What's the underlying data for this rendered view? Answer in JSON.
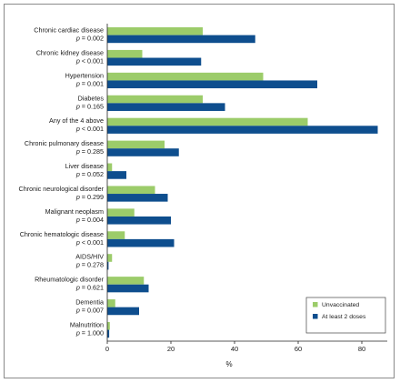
{
  "chart_data": {
    "type": "bar",
    "orientation": "horizontal",
    "categories": [
      "Chronic cardiac disease",
      "Chronic kidney disease",
      "Hypertension",
      "Diabetes",
      "Any of the 4 above",
      "Chronic pulmonary disease",
      "Liver disease",
      "Chronic neurological disorder",
      "Malignant neoplasm",
      "Chronic hematologic disease",
      "AIDS/HIV",
      "Rheumatologic disorder",
      "Dementia",
      "Malnutrition"
    ],
    "p_values": [
      "p = 0.002",
      "p < 0.001",
      "p = 0.001",
      "p = 0.165",
      "p < 0.001",
      "p = 0.285",
      "p = 0.052",
      "p = 0.299",
      "p = 0.004",
      "p < 0.001",
      "p = 0.278",
      "p = 0.621",
      "p = 0.007",
      "p = 1.000"
    ],
    "series": [
      {
        "name": "Unvaccinated",
        "color": "#9ccc6a",
        "values": [
          30,
          11,
          49,
          30,
          63,
          18,
          1.5,
          15,
          8.5,
          5.5,
          1.5,
          11.5,
          2.5,
          0.8
        ]
      },
      {
        "name": "At least 2 doses",
        "color": "#0e4e8e",
        "values": [
          46.5,
          29.5,
          66,
          37,
          85,
          22.5,
          6,
          19,
          20,
          21,
          0.4,
          13,
          10,
          0.6
        ]
      }
    ],
    "xlabel": "%",
    "xlim": [
      0,
      88
    ],
    "xticks": [
      0,
      20,
      40,
      60,
      80
    ],
    "grid": false,
    "legend_position": "bottom-right"
  }
}
